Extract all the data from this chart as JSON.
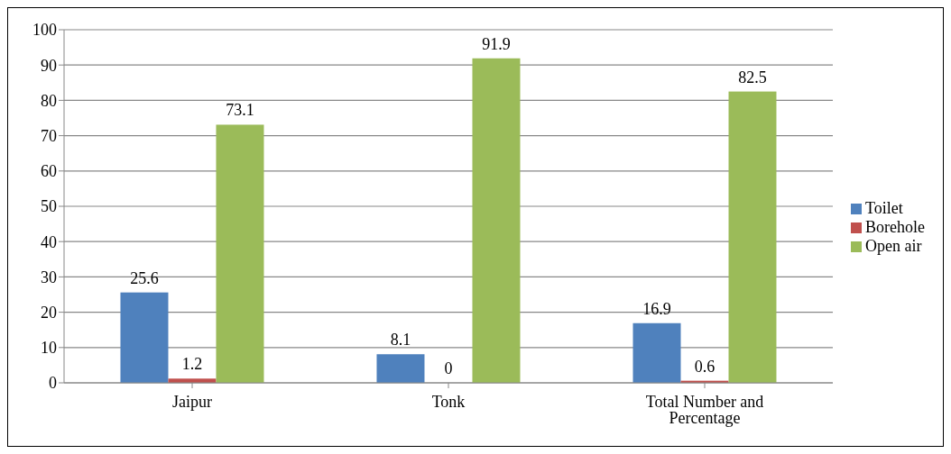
{
  "chart_data": {
    "type": "bar",
    "categories": [
      "Jaipur",
      "Tonk",
      "Total Number and Percentage"
    ],
    "series": [
      {
        "name": "Toilet",
        "color": "#4f81bd",
        "values": [
          25.6,
          8.1,
          16.9
        ]
      },
      {
        "name": "Borehole",
        "color": "#c0504d",
        "values": [
          1.2,
          0,
          0.6
        ]
      },
      {
        "name": "Open air",
        "color": "#9bbb59",
        "values": [
          73.1,
          91.9,
          82.5
        ]
      }
    ],
    "ylim": [
      0,
      100
    ],
    "yticks": [
      0,
      10,
      20,
      30,
      40,
      50,
      60,
      70,
      80,
      90,
      100
    ],
    "grid": "y",
    "legend": "right",
    "data_labels": true
  }
}
